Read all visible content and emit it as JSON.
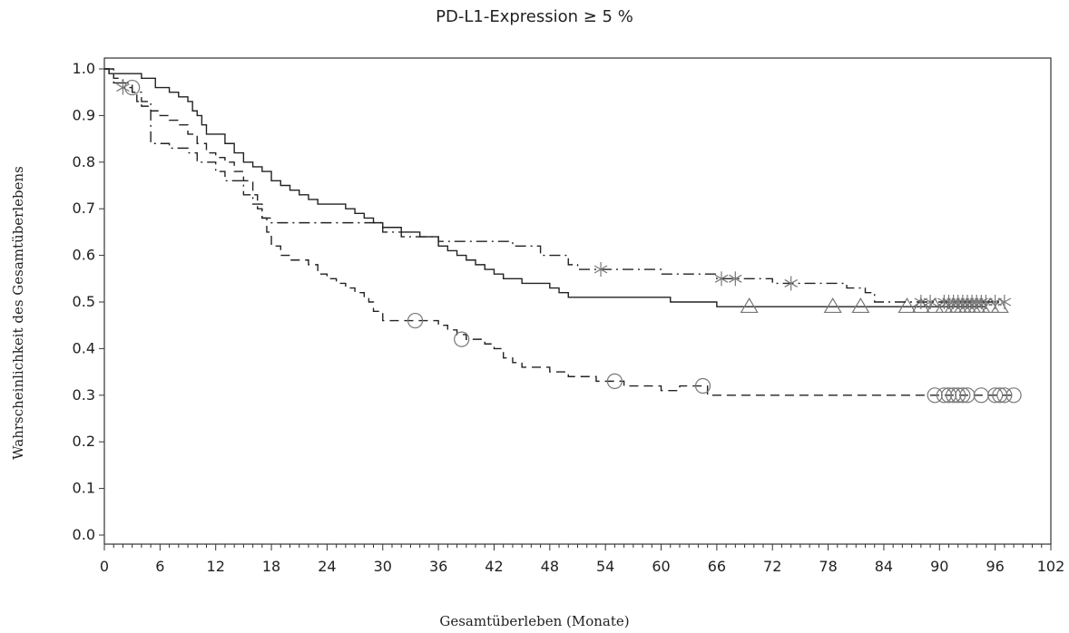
{
  "chart_data": {
    "type": "line",
    "subtype": "kaplan-meier step curves",
    "title": "PD-L1-Expression ≥ 5 %",
    "xlabel": "Gesamtüberleben (Monate)",
    "ylabel": "Wahrscheinlichkeit des Gesamtüberlebens",
    "xlim": [
      0,
      102
    ],
    "ylim": [
      0,
      1
    ],
    "xticks": [
      0,
      6,
      12,
      18,
      24,
      30,
      36,
      42,
      48,
      54,
      60,
      66,
      72,
      78,
      84,
      90,
      96,
      102
    ],
    "yticks": [
      "0.0",
      "0.1",
      "0.2",
      "0.3",
      "0.4",
      "0.5",
      "0.6",
      "0.7",
      "0.8",
      "0.9",
      "1.0"
    ],
    "grid": false,
    "series": [
      {
        "style": "solid",
        "censor_marker": "triangle",
        "color": "#222222",
        "points": [
          [
            0,
            1.0
          ],
          [
            0.5,
            0.99
          ],
          [
            4,
            0.98
          ],
          [
            5.5,
            0.96
          ],
          [
            7,
            0.95
          ],
          [
            8,
            0.94
          ],
          [
            9,
            0.93
          ],
          [
            9.5,
            0.91
          ],
          [
            10,
            0.9
          ],
          [
            10.5,
            0.88
          ],
          [
            11,
            0.86
          ],
          [
            13,
            0.84
          ],
          [
            14,
            0.82
          ],
          [
            15,
            0.8
          ],
          [
            16,
            0.79
          ],
          [
            17,
            0.78
          ],
          [
            18,
            0.76
          ],
          [
            19,
            0.75
          ],
          [
            20,
            0.74
          ],
          [
            21,
            0.73
          ],
          [
            22,
            0.72
          ],
          [
            23,
            0.71
          ],
          [
            26,
            0.7
          ],
          [
            27,
            0.69
          ],
          [
            28,
            0.68
          ],
          [
            29,
            0.67
          ],
          [
            30,
            0.66
          ],
          [
            32,
            0.65
          ],
          [
            34,
            0.64
          ],
          [
            36,
            0.62
          ],
          [
            37,
            0.61
          ],
          [
            38,
            0.6
          ],
          [
            39,
            0.59
          ],
          [
            40,
            0.58
          ],
          [
            41,
            0.57
          ],
          [
            42,
            0.56
          ],
          [
            43,
            0.55
          ],
          [
            45,
            0.54
          ],
          [
            48,
            0.53
          ],
          [
            49,
            0.52
          ],
          [
            50,
            0.51
          ],
          [
            61,
            0.5
          ],
          [
            66,
            0.49
          ],
          [
            95,
            0.49
          ]
        ],
        "censored": [
          [
            69.5,
            0.49
          ],
          [
            78.5,
            0.49
          ],
          [
            81.5,
            0.49
          ],
          [
            86.5,
            0.49
          ],
          [
            88,
            0.49
          ],
          [
            89.5,
            0.49
          ],
          [
            90.5,
            0.49
          ],
          [
            91.5,
            0.49
          ],
          [
            92,
            0.49
          ],
          [
            92.5,
            0.49
          ],
          [
            93,
            0.49
          ],
          [
            93.5,
            0.49
          ],
          [
            94,
            0.49
          ],
          [
            94.5,
            0.49
          ],
          [
            95.5,
            0.49
          ],
          [
            96.5,
            0.49
          ]
        ]
      },
      {
        "style": "dashed",
        "censor_marker": "circle",
        "color": "#222222",
        "points": [
          [
            0,
            1.0
          ],
          [
            0.5,
            0.99
          ],
          [
            1,
            0.98
          ],
          [
            2,
            0.97
          ],
          [
            3,
            0.95
          ],
          [
            3.5,
            0.93
          ],
          [
            4,
            0.92
          ],
          [
            5,
            0.91
          ],
          [
            6,
            0.9
          ],
          [
            7,
            0.89
          ],
          [
            8,
            0.88
          ],
          [
            9,
            0.86
          ],
          [
            10,
            0.84
          ],
          [
            11,
            0.82
          ],
          [
            12,
            0.81
          ],
          [
            13,
            0.8
          ],
          [
            14,
            0.78
          ],
          [
            15,
            0.76
          ],
          [
            16,
            0.73
          ],
          [
            16.5,
            0.7
          ],
          [
            17,
            0.68
          ],
          [
            17.5,
            0.65
          ],
          [
            18,
            0.62
          ],
          [
            19,
            0.6
          ],
          [
            20,
            0.59
          ],
          [
            22,
            0.58
          ],
          [
            23,
            0.56
          ],
          [
            24,
            0.55
          ],
          [
            25,
            0.54
          ],
          [
            26,
            0.53
          ],
          [
            27,
            0.52
          ],
          [
            28,
            0.51
          ],
          [
            28.5,
            0.5
          ],
          [
            29,
            0.48
          ],
          [
            30,
            0.46
          ],
          [
            36,
            0.45
          ],
          [
            37,
            0.44
          ],
          [
            38,
            0.43
          ],
          [
            39,
            0.42
          ],
          [
            41,
            0.41
          ],
          [
            42,
            0.4
          ],
          [
            43,
            0.38
          ],
          [
            44,
            0.37
          ],
          [
            45,
            0.36
          ],
          [
            48,
            0.35
          ],
          [
            50,
            0.34
          ],
          [
            53,
            0.33
          ],
          [
            56,
            0.32
          ],
          [
            60,
            0.31
          ],
          [
            62,
            0.32
          ],
          [
            65,
            0.3
          ],
          [
            98,
            0.3
          ]
        ],
        "censored": [
          [
            3,
            0.96
          ],
          [
            33.5,
            0.46
          ],
          [
            38.5,
            0.42
          ],
          [
            55,
            0.33
          ],
          [
            64.5,
            0.32
          ],
          [
            89.5,
            0.3
          ],
          [
            90.5,
            0.3
          ],
          [
            91,
            0.3
          ],
          [
            91.5,
            0.3
          ],
          [
            92,
            0.3
          ],
          [
            92.5,
            0.3
          ],
          [
            93,
            0.3
          ],
          [
            94.5,
            0.3
          ],
          [
            96,
            0.3
          ],
          [
            96.5,
            0.3
          ],
          [
            97,
            0.3
          ],
          [
            98,
            0.3
          ]
        ]
      },
      {
        "style": "dash-dot",
        "censor_marker": "asterisk",
        "color": "#222222",
        "points": [
          [
            0,
            1.0
          ],
          [
            1,
            0.97
          ],
          [
            2,
            0.96
          ],
          [
            3,
            0.95
          ],
          [
            4,
            0.93
          ],
          [
            5,
            0.84
          ],
          [
            7,
            0.83
          ],
          [
            9,
            0.82
          ],
          [
            10,
            0.8
          ],
          [
            12,
            0.78
          ],
          [
            13,
            0.76
          ],
          [
            15,
            0.73
          ],
          [
            16,
            0.71
          ],
          [
            17,
            0.68
          ],
          [
            18,
            0.67
          ],
          [
            30,
            0.65
          ],
          [
            32,
            0.64
          ],
          [
            36,
            0.63
          ],
          [
            44,
            0.62
          ],
          [
            47,
            0.6
          ],
          [
            50,
            0.58
          ],
          [
            51,
            0.57
          ],
          [
            60,
            0.56
          ],
          [
            66,
            0.55
          ],
          [
            72,
            0.54
          ],
          [
            77,
            0.54
          ],
          [
            80,
            0.53
          ],
          [
            82,
            0.52
          ],
          [
            83,
            0.5
          ],
          [
            97,
            0.5
          ]
        ],
        "censored": [
          [
            2,
            0.96
          ],
          [
            53.5,
            0.57
          ],
          [
            66.5,
            0.55
          ],
          [
            68,
            0.55
          ],
          [
            74,
            0.54
          ],
          [
            88,
            0.5
          ],
          [
            89,
            0.5
          ],
          [
            90.5,
            0.5
          ],
          [
            91,
            0.5
          ],
          [
            91.5,
            0.5
          ],
          [
            92,
            0.5
          ],
          [
            92.5,
            0.5
          ],
          [
            93,
            0.5
          ],
          [
            93.5,
            0.5
          ],
          [
            94,
            0.5
          ],
          [
            94.5,
            0.5
          ],
          [
            95,
            0.5
          ],
          [
            96,
            0.5
          ],
          [
            97,
            0.5
          ]
        ]
      }
    ]
  }
}
